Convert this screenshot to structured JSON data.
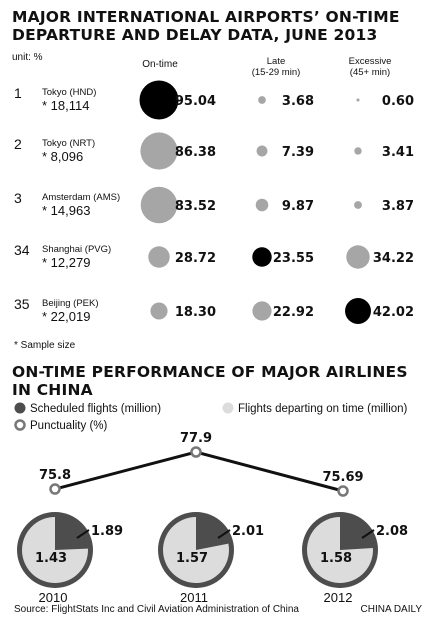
{
  "title_line1": "MAJOR INTERNATIONAL AIRPORTS’ ON-TIME",
  "title_line2": "DEPARTURE AND DELAY DATA, JUNE 2013",
  "unit": "unit: %",
  "columns": {
    "ontime": "On-time",
    "late_l1": "Late",
    "late_l2": "(15-29 min)",
    "excessive_l1": "Excessive",
    "excessive_l2": "(45+ min)"
  },
  "sample_note": "* Sample size",
  "section2_title_line1": "ON-TIME PERFORMANCE OF MAJOR AIRLINES",
  "section2_title_line2": "IN CHINA",
  "legend": {
    "scheduled": "Scheduled flights (million)",
    "ontime": "Flights departing on time (million)",
    "punctuality": "Punctuality (%)"
  },
  "source": "Source: FlightStats Inc and Civil Aviation Administration of China",
  "credit": "CHINA DAILY",
  "colors": {
    "on_time_circle": "#000000",
    "bubble_gray": "#a6a6a6",
    "pie_dark": "#4d4d4d",
    "pie_light": "#dcdcdc",
    "line": "#111111"
  },
  "chart_data": [
    {
      "type": "table",
      "columns": [
        "On-time",
        "Late (15-29 min)",
        "Excessive (45+ min)"
      ],
      "rows": [
        {
          "rank": "1",
          "airport": "Tokyo (HND)",
          "sample": "* 18,114",
          "on_time": 95.04,
          "late": 3.68,
          "excessive": 0.6,
          "on_time_label": "95.04",
          "late_label": "3.68",
          "excessive_label": "0.60"
        },
        {
          "rank": "2",
          "airport": "Tokyo (NRT)",
          "sample": "* 8,096",
          "on_time": 86.38,
          "late": 7.39,
          "excessive": 3.41,
          "on_time_label": "86.38",
          "late_label": "7.39",
          "excessive_label": "3.41"
        },
        {
          "rank": "3",
          "airport": "Amsterdam (AMS)",
          "sample": "* 14,963",
          "on_time": 83.52,
          "late": 9.87,
          "excessive": 3.87,
          "on_time_label": "83.52",
          "late_label": "9.87",
          "excessive_label": "3.87"
        },
        {
          "rank": "34",
          "airport": "Shanghai (PVG)",
          "sample": "* 12,279",
          "on_time": 28.72,
          "late": 23.55,
          "excessive": 34.22,
          "on_time_label": "28.72",
          "late_label": "23.55",
          "excessive_label": "34.22"
        },
        {
          "rank": "35",
          "airport": "Beijing (PEK)",
          "sample": "* 22,019",
          "on_time": 18.3,
          "late": 22.92,
          "excessive": 42.02,
          "on_time_label": "18.30",
          "late_label": "22.92",
          "excessive_label": "42.02"
        }
      ],
      "highlight": {
        "on_time_max": "black circle",
        "late_max": "black circle",
        "excessive_max": "black circle"
      }
    },
    {
      "type": "line",
      "categories": [
        "2010",
        "2011",
        "2012"
      ],
      "series": [
        {
          "name": "Punctuality (%)",
          "values": [
            75.8,
            77.9,
            75.69
          ],
          "labels": [
            "75.8",
            "77.9",
            "75.69"
          ]
        }
      ]
    },
    {
      "type": "pie",
      "categories": [
        "2010",
        "2011",
        "2012"
      ],
      "series": [
        {
          "name": "Scheduled flights (million)",
          "values": [
            1.89,
            2.01,
            2.08
          ],
          "labels": [
            "1.89",
            "2.01",
            "2.08"
          ]
        },
        {
          "name": "Flights departing on time (million)",
          "values": [
            1.43,
            1.57,
            1.58
          ],
          "labels": [
            "1.43",
            "1.57",
            "1.58"
          ]
        }
      ]
    }
  ]
}
